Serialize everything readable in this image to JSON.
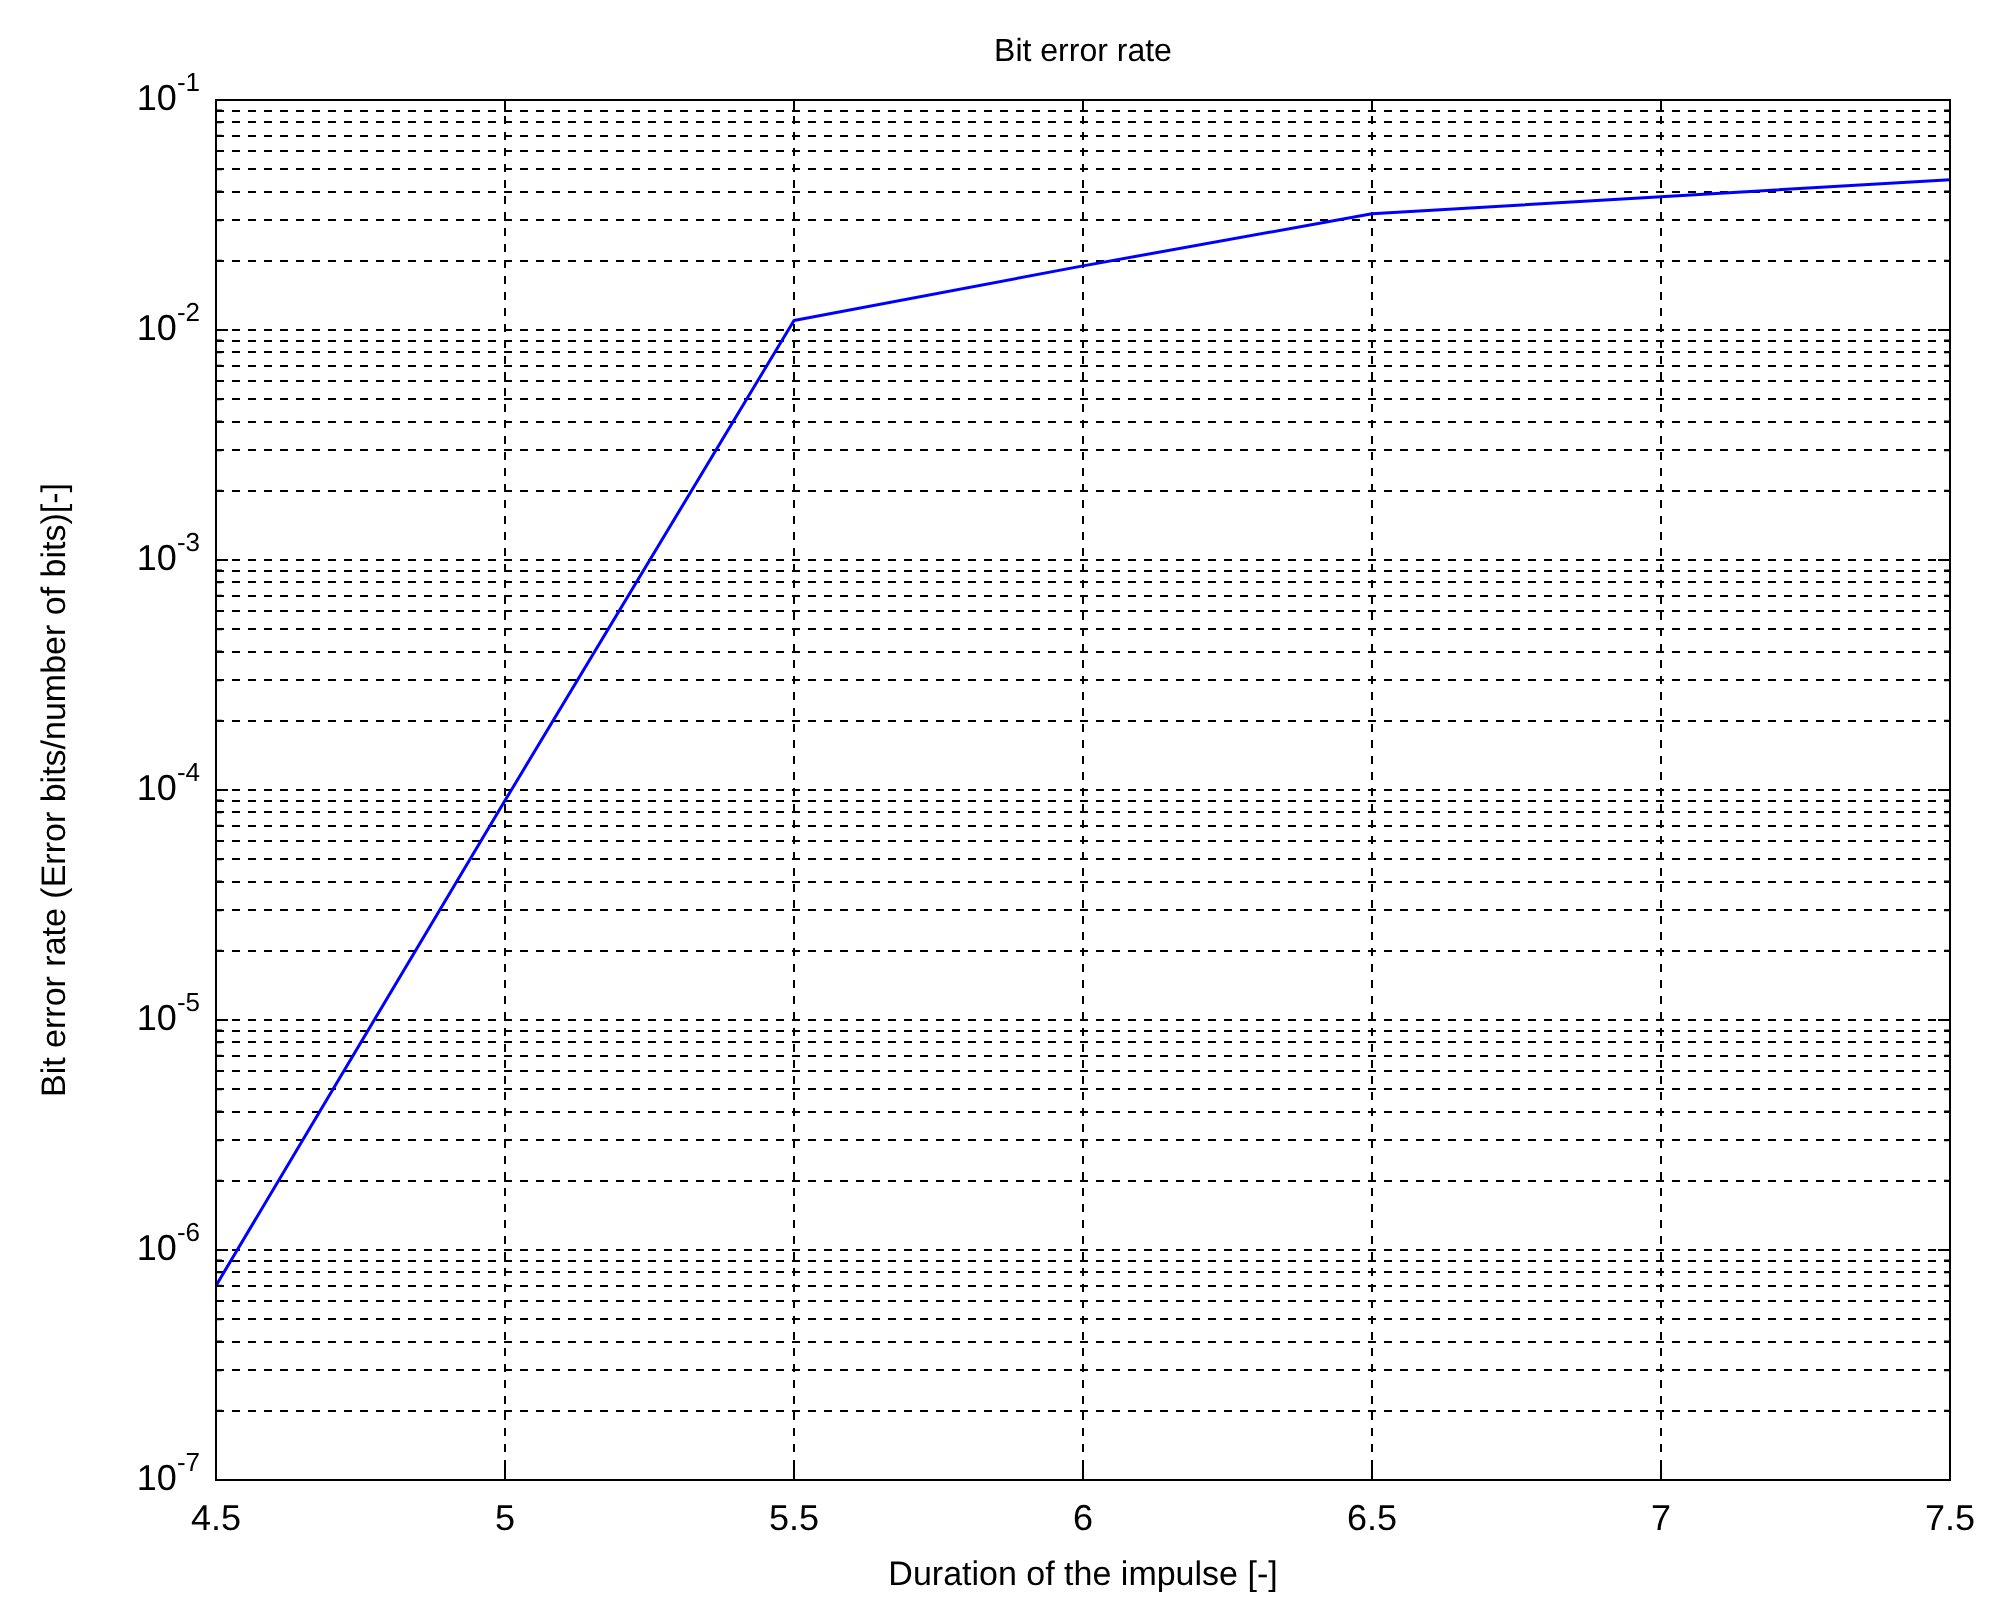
{
  "chart_data": {
    "type": "line",
    "title": "Bit error rate",
    "xlabel": "Duration of the impulse [-]",
    "ylabel": "Bit error rate (Error bits/number of bits)[-]",
    "x": [
      4.5,
      5,
      5.5,
      6,
      6.5,
      7,
      7.5
    ],
    "series": [
      {
        "color": "#0000ff",
        "values": [
          7e-07,
          9e-05,
          0.011,
          0.019,
          0.032,
          0.038,
          0.045
        ]
      }
    ],
    "log": "y",
    "grid": true,
    "marker": "none",
    "xlim": [
      4.5,
      7.5
    ],
    "xticks": [
      4.5,
      5,
      5.5,
      6,
      6.5,
      7,
      7.5
    ],
    "ylim": [
      1e-07,
      0.1
    ],
    "yticks": [
      {
        "value": 1e-07,
        "label": "10$^{-7}$"
      },
      {
        "value": 2e-07,
        "label": null
      },
      {
        "value": 3e-07,
        "label": null
      },
      {
        "value": 4e-07,
        "label": null
      },
      {
        "value": 5e-07,
        "label": null
      },
      {
        "value": 6e-07,
        "label": null
      },
      {
        "value": 7e-07,
        "label": null
      },
      {
        "value": 8e-07,
        "label": null
      },
      {
        "value": 9e-07,
        "label": null
      },
      {
        "value": 1e-06,
        "label": "10$^{-6}$"
      },
      {
        "value": 2e-06,
        "label": null
      },
      {
        "value": 3e-06,
        "label": null
      },
      {
        "value": 4e-06,
        "label": null
      },
      {
        "value": 5e-06,
        "label": null
      },
      {
        "value": 6e-06,
        "label": null
      },
      {
        "value": 7e-06,
        "label": null
      },
      {
        "value": 8e-06,
        "label": null
      },
      {
        "value": 9e-06,
        "label": null
      },
      {
        "value": 1e-05,
        "label": "10$^{-5}$"
      },
      {
        "value": 2e-05,
        "label": null
      },
      {
        "value": 3e-05,
        "label": null
      },
      {
        "value": 4e-05,
        "label": null
      },
      {
        "value": 5e-05,
        "label": null
      },
      {
        "value": 6e-05,
        "label": null
      },
      {
        "value": 7e-05,
        "label": null
      },
      {
        "value": 8e-05,
        "label": null
      },
      {
        "value": 9e-05,
        "label": null
      },
      {
        "value": 0.0001,
        "label": "10$^{-4}$"
      },
      {
        "value": 0.0002,
        "label": null
      },
      {
        "value": 0.0003,
        "label": null
      },
      {
        "value": 0.0004,
        "label": null
      },
      {
        "value": 0.0005,
        "label": null
      },
      {
        "value": 0.0006,
        "label": null
      },
      {
        "value": 0.0007,
        "label": null
      },
      {
        "value": 0.0008,
        "label": null
      },
      {
        "value": 0.0009,
        "label": null
      },
      {
        "value": 0.001,
        "label": "10$^{-3}$"
      },
      {
        "value": 0.002,
        "label": null
      },
      {
        "value": 0.003,
        "label": null
      },
      {
        "value": 0.004,
        "label": null
      },
      {
        "value": 0.005,
        "label": null
      },
      {
        "value": 0.006,
        "label": null
      },
      {
        "value": 0.007,
        "label": null
      },
      {
        "value": 0.008,
        "label": null
      },
      {
        "value": 0.009,
        "label": null
      },
      {
        "value": 0.01,
        "label": "10$^{-2}$"
      },
      {
        "value": 0.02,
        "label": null
      },
      {
        "value": 0.03,
        "label": null
      },
      {
        "value": 0.04,
        "label": null
      },
      {
        "value": 0.05,
        "label": null
      },
      {
        "value": 0.06,
        "label": null
      },
      {
        "value": 0.07,
        "label": null
      },
      {
        "value": 0.08,
        "label": null
      },
      {
        "value": 0.09,
        "label": null
      },
      {
        "value": 0.1,
        "label": "10$^{-1}$"
      }
    ]
  }
}
